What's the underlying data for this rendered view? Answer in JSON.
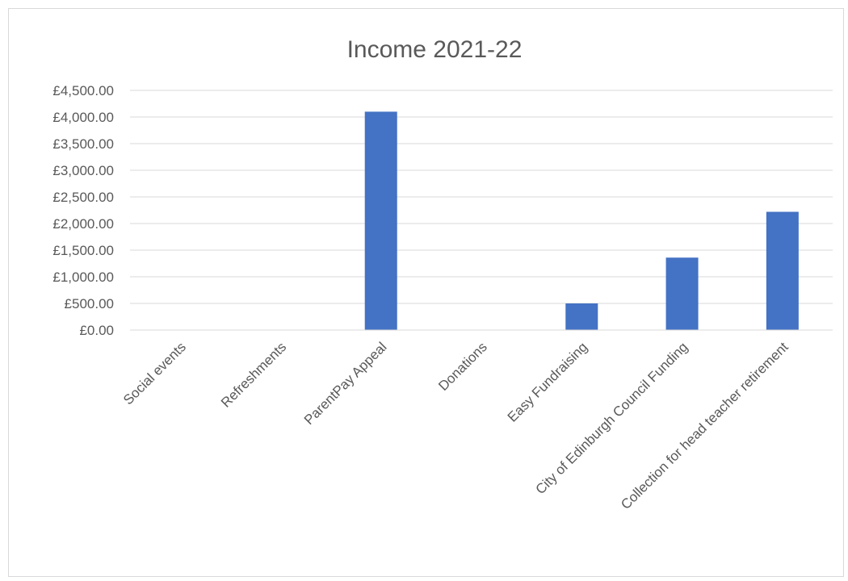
{
  "chart_data": {
    "type": "bar",
    "title": "Income 2021-22",
    "xlabel": "",
    "ylabel": "",
    "categories": [
      "Social events",
      "Refreshments",
      "ParentPay Appeal",
      "Donations",
      "Easy Fundraising",
      "City of Edinburgh Council Funding",
      "Collection for head teacher retirement"
    ],
    "values": [
      0,
      0,
      4100,
      0,
      500,
      1360,
      2220
    ],
    "ylim": [
      0,
      4500
    ],
    "yticks": [
      0,
      500,
      1000,
      1500,
      2000,
      2500,
      3000,
      3500,
      4000,
      4500
    ],
    "ytick_labels": [
      "£0.00",
      "£500.00",
      "£1,000.00",
      "£1,500.00",
      "£2,000.00",
      "£2,500.00",
      "£3,000.00",
      "£3,500.00",
      "£4,000.00",
      "£4,500.00"
    ],
    "grid": true,
    "legend": "none",
    "colors": {
      "bar": "#4472C4",
      "grid": "#d9d9d9",
      "text": "#595959",
      "border": "#d9d9d9"
    }
  }
}
